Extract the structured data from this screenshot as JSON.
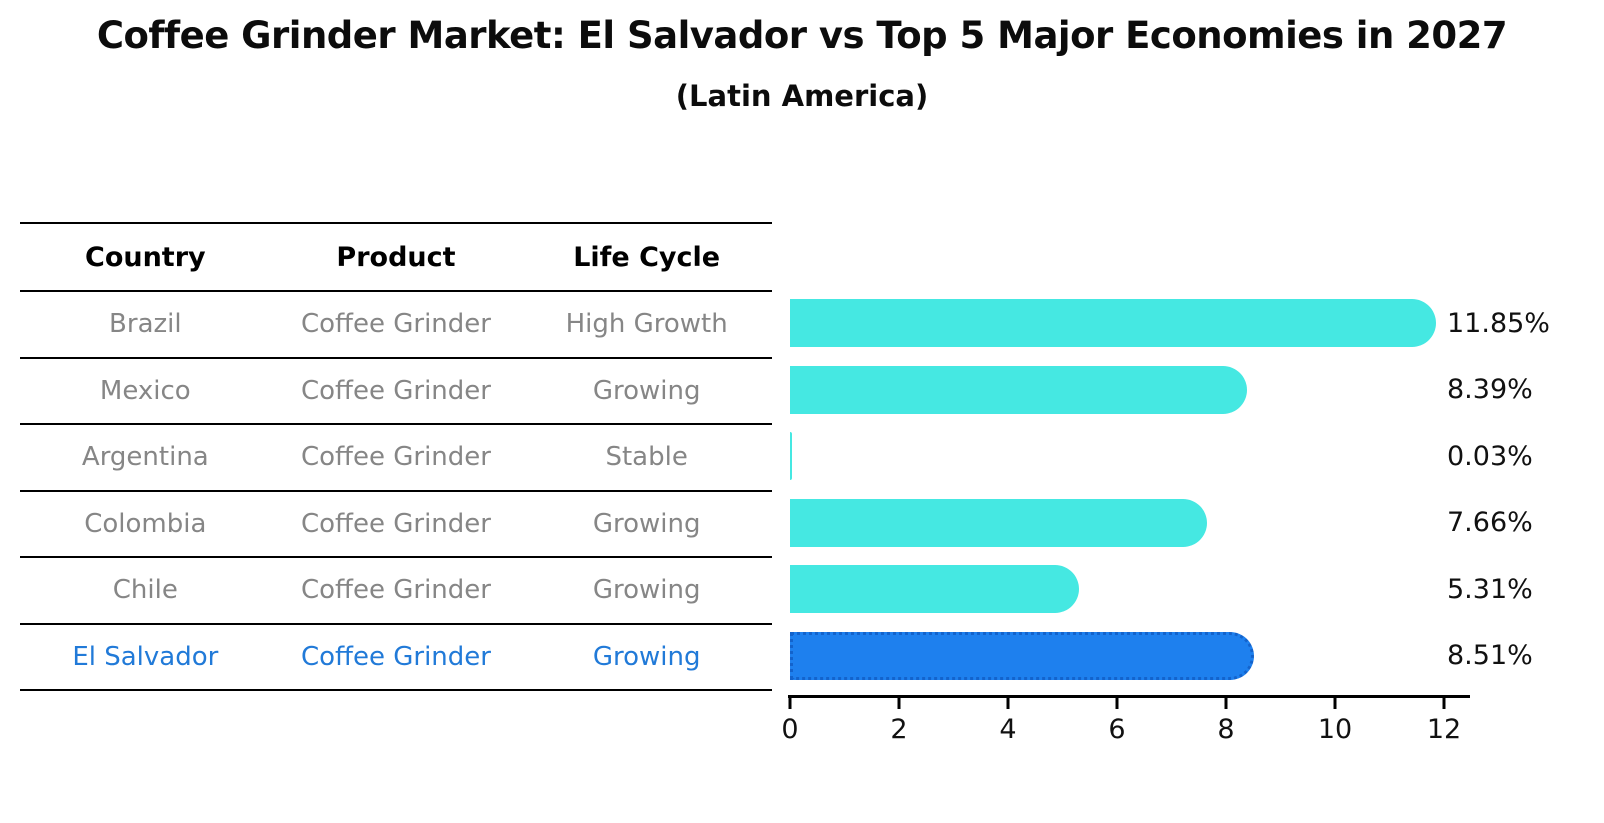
{
  "title": "Coffee Grinder Market: El Salvador vs Top 5 Major Economies in 2027",
  "subtitle": "(Latin America)",
  "table": {
    "headers": [
      "Country",
      "Product",
      "Life Cycle"
    ],
    "rows": [
      {
        "country": "Brazil",
        "product": "Coffee Grinder",
        "life_cycle": "High Growth"
      },
      {
        "country": "Mexico",
        "product": "Coffee Grinder",
        "life_cycle": "Growing"
      },
      {
        "country": "Argentina",
        "product": "Coffee Grinder",
        "life_cycle": "Stable"
      },
      {
        "country": "Colombia",
        "product": "Coffee Grinder",
        "life_cycle": "Growing"
      },
      {
        "country": "Chile",
        "product": "Coffee Grinder",
        "life_cycle": "Growing"
      },
      {
        "country": "El Salvador",
        "product": "Coffee Grinder",
        "life_cycle": "Growing"
      }
    ]
  },
  "chart_data": {
    "type": "bar",
    "orientation": "horizontal",
    "title": "Coffee Grinder Market: El Salvador vs Top 5 Major Economies in 2027 (Latin America)",
    "categories": [
      "Brazil",
      "Mexico",
      "Argentina",
      "Colombia",
      "Chile",
      "El Salvador"
    ],
    "values": [
      11.85,
      8.39,
      0.03,
      7.66,
      5.31,
      8.51
    ],
    "value_labels": [
      "11.85%",
      "8.39%",
      "0.03%",
      "7.66%",
      "5.31%",
      "8.51%"
    ],
    "x_tick_values": [
      0,
      2,
      4,
      6,
      8,
      10,
      12
    ],
    "x_tick_labels": [
      "0",
      "2",
      "4",
      "6",
      "8",
      "10",
      "12"
    ],
    "xlim": [
      0,
      12.44
    ],
    "grid": false,
    "legend": null,
    "bar_color": "#45e8e2",
    "highlight_index": 5,
    "highlight_color": "#1e80ee",
    "highlight_border_color": "#1363cc",
    "highlight_text_color": "#217ad8"
  }
}
